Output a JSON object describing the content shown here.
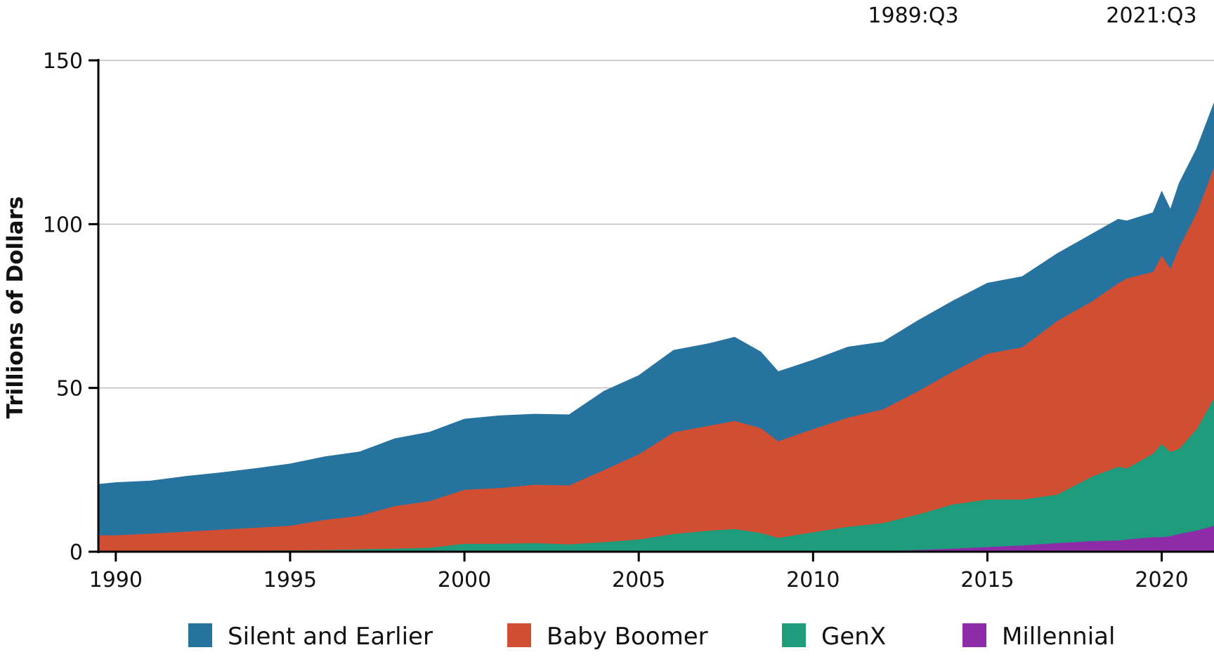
{
  "chart_data": {
    "type": "area",
    "stacked": true,
    "title": "",
    "xlabel": "",
    "ylabel": "Trillions of Dollars",
    "ylim": [
      0,
      150
    ],
    "xlim": [
      1989.5,
      2021.5
    ],
    "x_ticks": [
      1990,
      1995,
      2000,
      2005,
      2010,
      2015,
      2020
    ],
    "y_ticks": [
      0,
      50,
      100,
      150
    ],
    "grid": "horizontal",
    "legend_position": "bottom",
    "annotations": [
      "1989:Q3",
      "2021:Q3"
    ],
    "x": [
      1989.5,
      1990,
      1991,
      1992,
      1993,
      1994,
      1995,
      1996,
      1997,
      1998,
      1999,
      2000,
      2001,
      2002,
      2003,
      2004,
      2005,
      2006,
      2007,
      2007.75,
      2008.5,
      2009,
      2010,
      2011,
      2012,
      2013,
      2014,
      2015,
      2016,
      2017,
      2018,
      2018.75,
      2019,
      2019.75,
      2020,
      2020.25,
      2020.5,
      2021,
      2021.5
    ],
    "series": [
      {
        "name": "Millennial",
        "color": "#8e2ba8",
        "values": [
          0,
          0,
          0,
          0,
          0,
          0,
          0,
          0,
          0,
          0,
          0,
          0,
          0,
          0,
          0,
          0,
          0,
          0,
          0,
          0,
          0,
          0,
          0.1,
          0.2,
          0.3,
          0.6,
          1,
          1.5,
          2,
          2.7,
          3.3,
          3.5,
          3.8,
          4.5,
          4.5,
          4.8,
          5.5,
          6.5,
          8
        ]
      },
      {
        "name": "GenX",
        "color": "#1f9c7c",
        "values": [
          0.1,
          0.1,
          0.1,
          0.2,
          0.3,
          0.4,
          0.5,
          0.6,
          0.8,
          1,
          1.3,
          2.5,
          2.5,
          2.7,
          2.3,
          3,
          3.8,
          5.5,
          6.5,
          7,
          5.8,
          4.3,
          5.9,
          7.5,
          8.5,
          10.8,
          13.5,
          14.5,
          14,
          14.8,
          19.7,
          22.5,
          21.7,
          25.5,
          28.5,
          25.7,
          26,
          31,
          39
        ]
      },
      {
        "name": "Baby Boomer",
        "color": "#d24e32",
        "values": [
          5,
          5,
          5.5,
          6,
          6.5,
          7,
          7.5,
          9.2,
          10.2,
          13,
          14.2,
          16.5,
          17,
          17.8,
          18,
          22,
          26,
          31,
          32,
          33,
          32,
          29.5,
          31.5,
          33.3,
          34.7,
          37.6,
          40.5,
          44.5,
          46.5,
          53,
          53.5,
          56,
          58,
          55.5,
          57.5,
          56,
          61.5,
          66,
          70.5
        ]
      },
      {
        "name": "Silent and Earlier",
        "color": "#2673a0",
        "values": [
          15.5,
          16,
          16,
          16.8,
          17.3,
          18,
          18.8,
          19.2,
          19.5,
          20.5,
          21,
          21.5,
          22,
          21.5,
          21.5,
          24,
          24,
          25,
          25,
          25.5,
          23.2,
          21.2,
          21,
          21.5,
          20.5,
          21.5,
          21.5,
          21.5,
          21.5,
          20.5,
          20.5,
          19.5,
          17.5,
          18,
          19.5,
          18,
          19.5,
          19.5,
          19.5
        ]
      }
    ]
  }
}
